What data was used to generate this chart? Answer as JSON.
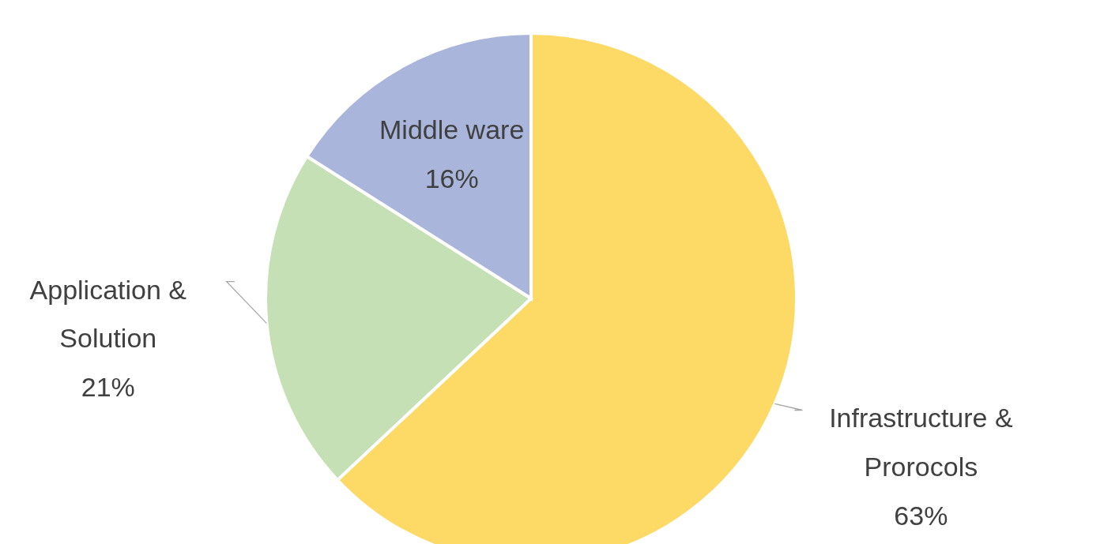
{
  "chart_data": {
    "type": "pie",
    "categories": [
      "Infrastructure & Prorocols",
      "Application & Solution",
      "Middle ware"
    ],
    "values": [
      63,
      21,
      16
    ],
    "colors": [
      "#fdd966",
      "#c5e0b4",
      "#a9b5db"
    ],
    "value_labels": [
      "63%",
      "21%",
      "16%"
    ]
  }
}
